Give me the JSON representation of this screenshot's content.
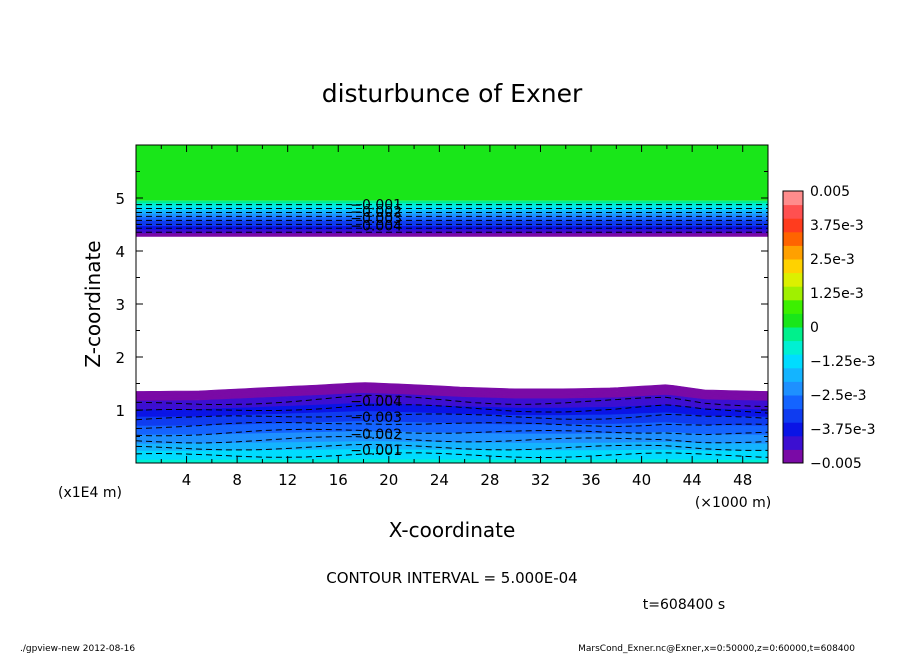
{
  "chart_data": {
    "type": "contour",
    "title": "disturbunce of Exner",
    "xlabel": "X-coordinate",
    "ylabel": "Z-coordinate",
    "x_unit": "(×1000 m)",
    "y_unit": "(x1E4 m)",
    "xlim": [
      0,
      50
    ],
    "ylim": [
      0,
      6
    ],
    "x_ticks": [
      "4",
      "8",
      "12",
      "16",
      "20",
      "24",
      "28",
      "32",
      "36",
      "40",
      "44",
      "48"
    ],
    "x_tick_values": [
      4,
      8,
      12,
      16,
      20,
      24,
      28,
      32,
      36,
      40,
      44,
      48
    ],
    "y_ticks": [
      "1",
      "2",
      "3",
      "4",
      "5"
    ],
    "y_tick_values": [
      1,
      2,
      3,
      4,
      5
    ],
    "contour_labels": [
      {
        "text": "-0.001",
        "x": 19,
        "z": 0.25
      },
      {
        "text": "-0.002",
        "x": 19,
        "z": 0.55
      },
      {
        "text": "-0.003",
        "x": 19,
        "z": 0.87
      },
      {
        "text": "-0.004",
        "x": 19,
        "z": 1.17
      },
      {
        "text": "-0.001",
        "x": 19,
        "z": 4.88
      },
      {
        "text": "-0.002",
        "x": 19,
        "z": 4.75
      },
      {
        "text": "-0.003",
        "x": 19,
        "z": 4.62
      },
      {
        "text": "-0.004",
        "x": 19,
        "z": 4.48
      }
    ],
    "lower_layer": {
      "z_top_x": [
        0,
        5,
        10,
        15,
        18,
        22,
        26,
        30,
        34,
        38,
        42,
        45,
        50
      ],
      "z_top_z": [
        1.35,
        1.36,
        1.42,
        1.48,
        1.52,
        1.48,
        1.43,
        1.4,
        1.4,
        1.42,
        1.48,
        1.38,
        1.35
      ]
    },
    "upper_layer": {
      "z_bottom": 4.28,
      "z_top": 4.95
    },
    "colorbar": {
      "levels": [
        -0.005,
        -0.0045,
        -0.004,
        -0.0035,
        -0.003,
        -0.0025,
        -0.002,
        -0.0015,
        -0.001,
        -0.0005,
        0,
        0.0005,
        0.001,
        0.0015,
        0.002,
        0.0025,
        0.003,
        0.0035,
        0.004,
        0.0045,
        0.005
      ],
      "colors": [
        "#7a0aa6",
        "#3c0fd1",
        "#0a14e6",
        "#0f3cf0",
        "#1464ff",
        "#1e90ff",
        "#14b4ff",
        "#00dcff",
        "#00f0d2",
        "#00f08c",
        "#19e619",
        "#3cf000",
        "#a0f000",
        "#dcf000",
        "#ffd200",
        "#ffa000",
        "#ff6400",
        "#ff3c1e",
        "#ff5050",
        "#ff8c8c"
      ],
      "labels": [
        "0.005",
        "3.75e-3",
        "2.5e-3",
        "1.25e-3",
        "0",
        "−1.25e-3",
        "−2.5e-3",
        "−3.75e-3",
        "−0.005"
      ],
      "label_values": [
        0.005,
        0.00375,
        0.0025,
        0.00125,
        0,
        -0.00125,
        -0.0025,
        -0.00375,
        -0.005
      ]
    }
  },
  "annotations": {
    "contour_interval": "CONTOUR INTERVAL = 5.000E-04",
    "time": "t=608400  s",
    "footer_left": "./gpview-new   2012-08-16",
    "footer_right": "MarsCond_Exner.nc@Exner,x=0:50000,z=0:60000,t=608400"
  }
}
